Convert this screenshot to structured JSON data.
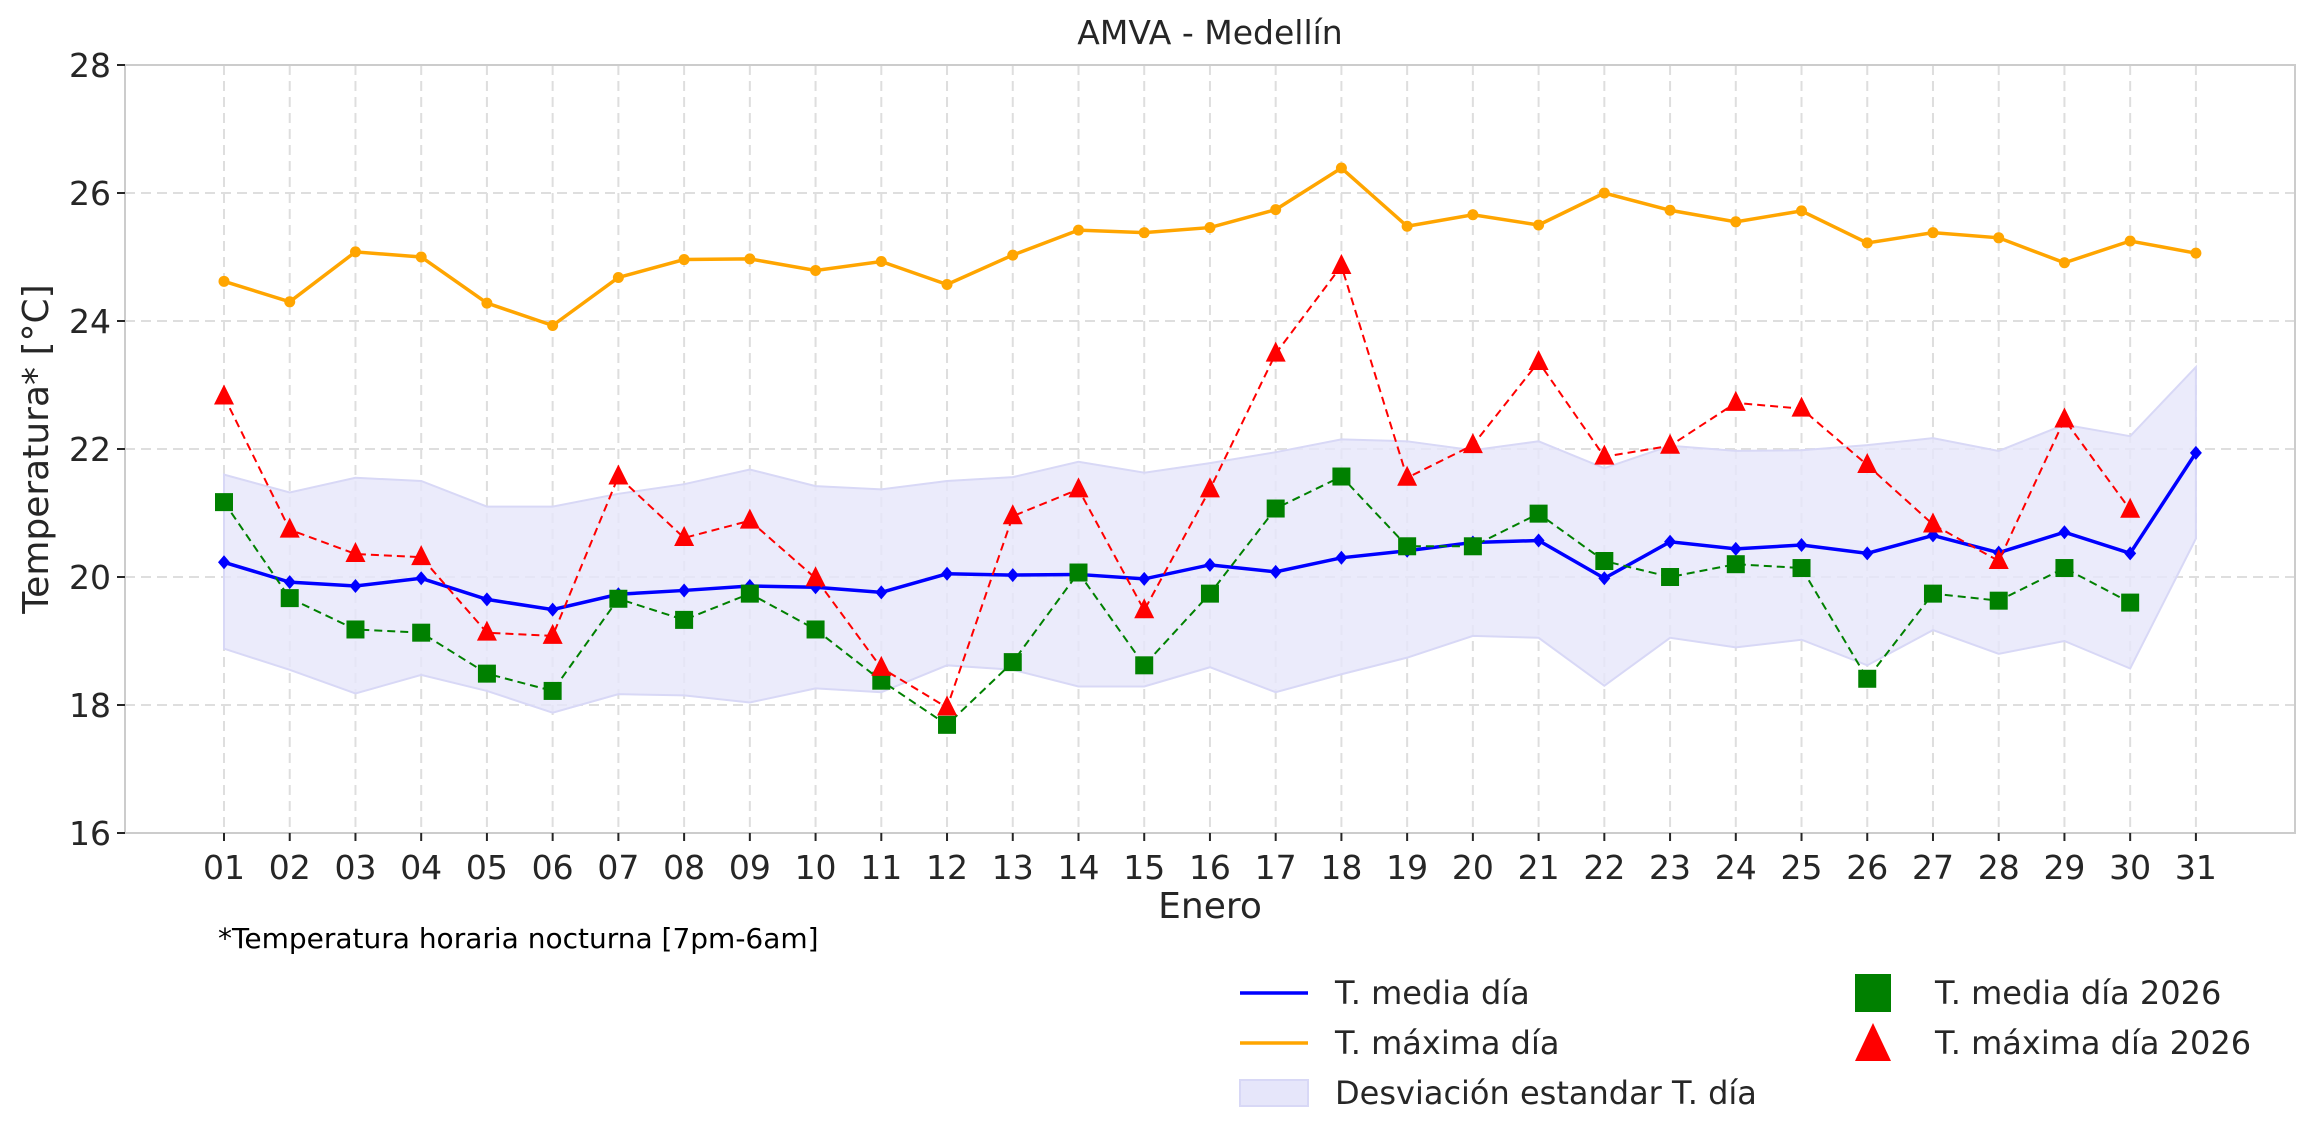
{
  "chart_data": {
    "type": "line",
    "title": "AMVA - Medellín",
    "xlabel": "Enero",
    "ylabel": "Temperatura* [°C]",
    "ylim": [
      16,
      28
    ],
    "yticks": [
      16,
      18,
      20,
      22,
      24,
      26,
      28
    ],
    "grid": true,
    "legend_position": "bottom-right",
    "footnote": "*Temperatura horaria nocturna [7pm-6am]",
    "categories": [
      "01",
      "02",
      "03",
      "04",
      "05",
      "06",
      "07",
      "08",
      "09",
      "10",
      "11",
      "12",
      "13",
      "14",
      "15",
      "16",
      "17",
      "18",
      "19",
      "20",
      "21",
      "22",
      "23",
      "24",
      "25",
      "26",
      "27",
      "28",
      "29",
      "30",
      "31"
    ],
    "series": [
      {
        "name": "T. media día",
        "style": "solid-line-diamond",
        "color": "#0000ff",
        "values": [
          20.23,
          19.92,
          19.86,
          19.98,
          19.65,
          19.49,
          19.73,
          19.79,
          19.86,
          19.84,
          19.76,
          20.05,
          20.03,
          20.04,
          19.97,
          20.19,
          20.08,
          20.3,
          20.41,
          20.54,
          20.57,
          19.98,
          20.55,
          20.44,
          20.5,
          20.37,
          20.65,
          20.38,
          20.7,
          20.37,
          21.94
        ]
      },
      {
        "name": "T. máxima día",
        "style": "solid-line-circle",
        "color": "#ffa500",
        "values": [
          24.62,
          24.3,
          25.08,
          25.0,
          24.28,
          23.93,
          24.68,
          24.96,
          24.97,
          24.79,
          24.93,
          24.57,
          25.03,
          25.42,
          25.38,
          25.46,
          25.74,
          26.39,
          25.48,
          25.66,
          25.5,
          26.0,
          25.73,
          25.55,
          25.72,
          25.22,
          25.38,
          25.3,
          24.91,
          25.25,
          25.06
        ]
      },
      {
        "name": "T. media día 2026",
        "style": "dashed-line-square",
        "color": "#008000",
        "values": [
          21.17,
          19.67,
          19.18,
          19.13,
          18.49,
          18.22,
          19.66,
          19.33,
          19.74,
          19.18,
          18.38,
          17.69,
          18.67,
          20.07,
          18.62,
          19.74,
          21.07,
          21.57,
          20.48,
          20.48,
          20.99,
          20.25,
          20.0,
          20.2,
          20.14,
          18.41,
          19.74,
          19.63,
          20.14,
          19.6
        ]
      },
      {
        "name": "T. máxima día 2026",
        "style": "dashed-line-triangle",
        "color": "#ff0000",
        "values": [
          22.82,
          20.74,
          20.36,
          20.31,
          19.13,
          19.08,
          21.57,
          20.61,
          20.88,
          19.98,
          18.58,
          17.96,
          20.95,
          21.37,
          19.48,
          21.37,
          23.49,
          24.86,
          21.55,
          22.06,
          23.36,
          21.88,
          22.05,
          22.72,
          22.63,
          21.75,
          20.82,
          20.25,
          22.46,
          21.05
        ]
      }
    ],
    "band": {
      "name": "Desviación estandar T. día",
      "color": "#e6e6fa",
      "upper": [
        21.6,
        21.32,
        21.55,
        21.5,
        21.1,
        21.1,
        21.3,
        21.45,
        21.68,
        21.42,
        21.37,
        21.5,
        21.56,
        21.8,
        21.63,
        21.78,
        21.95,
        22.15,
        22.12,
        21.98,
        22.12,
        21.7,
        22.05,
        21.97,
        21.98,
        22.06,
        22.17,
        21.97,
        22.38,
        22.2,
        23.28
      ],
      "lower": [
        18.88,
        18.55,
        18.18,
        18.47,
        18.22,
        17.88,
        18.17,
        18.15,
        18.04,
        18.26,
        18.2,
        18.62,
        18.55,
        18.29,
        18.29,
        18.59,
        18.2,
        18.48,
        18.74,
        19.08,
        19.05,
        18.3,
        19.05,
        18.9,
        19.02,
        18.62,
        19.17,
        18.8,
        19.0,
        18.57,
        20.6
      ]
    },
    "legend": [
      {
        "label": "T. media día",
        "marker": "line",
        "color": "#0000ff"
      },
      {
        "label": "T. máxima día",
        "marker": "line",
        "color": "#ffa500"
      },
      {
        "label": "Desviación estandar T. día",
        "marker": "patch",
        "color": "#e6e6fa"
      },
      {
        "label": "T. media día 2026",
        "marker": "square",
        "color": "#008000"
      },
      {
        "label": "T. máxima día 2026",
        "marker": "triangle",
        "color": "#ff0000"
      }
    ]
  }
}
